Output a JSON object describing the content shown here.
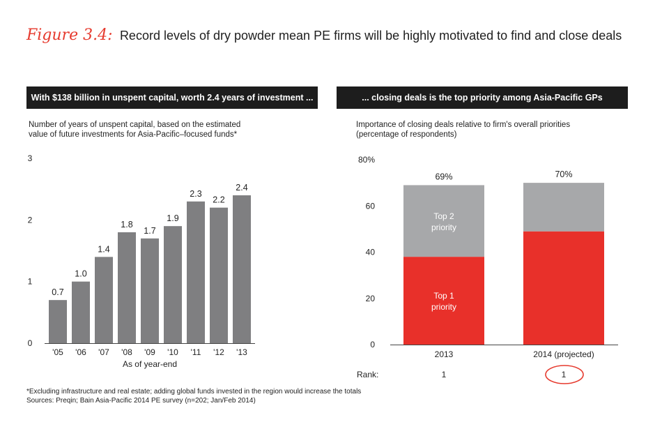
{
  "figure": {
    "label": "Figure 3.4:",
    "title": "Record levels of dry powder mean PE firms will be highly motivated to find and close deals"
  },
  "left_panel": {
    "banner": "With $138 billion in unspent capital, worth 2.4 years of investment ...",
    "subtitle_line1": "Number of years of unspent capital, based on the estimated",
    "subtitle_line2": "value of future investments for Asia-Pacific–focused funds*"
  },
  "right_panel": {
    "banner": "... closing deals is the top priority among Asia-Pacific GPs",
    "subtitle_line1": "Importance of closing deals relative to firm's overall priorities",
    "subtitle_line2": "(percentage of respondents)",
    "rank_label": "Rank:"
  },
  "footnotes": {
    "note": "*Excluding infrastructure and real estate; adding global funds invested in the region would increase the totals",
    "sources": "Sources: Preqin; Bain Asia-Pacific 2014 PE survey (n=202; Jan/Feb 2014)"
  },
  "colors": {
    "bar_gray": "#7f7f81",
    "top1_red": "#e8302a",
    "top2_gray": "#a7a8aa",
    "accent": "#e63a2e"
  },
  "chart_data": [
    {
      "type": "bar",
      "title": "With $138 billion in unspent capital, worth 2.4 years of investment ...",
      "xlabel": "As of year-end",
      "ylabel": "Number of years of unspent capital",
      "categories": [
        "'05",
        "'06",
        "'07",
        "'08",
        "'09",
        "'10",
        "'11",
        "'12",
        "'13"
      ],
      "values": [
        0.7,
        1.0,
        1.4,
        1.8,
        1.7,
        1.9,
        2.3,
        2.2,
        2.4
      ],
      "data_labels": [
        "0.7",
        "1.0",
        "1.4",
        "1.8",
        "1.7",
        "1.9",
        "2.3",
        "2.2",
        "2.4"
      ],
      "ylim": [
        0,
        3
      ],
      "yticks": [
        "0",
        "1",
        "2",
        "3"
      ]
    },
    {
      "type": "bar",
      "stacked": true,
      "title": "... closing deals is the top priority among Asia-Pacific GPs",
      "categories": [
        "2013",
        "2014 (projected)"
      ],
      "series": [
        {
          "name": "Top 1 priority",
          "label_line1": "Top 1",
          "label_line2": "priority",
          "values": [
            38,
            49
          ]
        },
        {
          "name": "Top 2 priority",
          "label_line1": "Top 2",
          "label_line2": "priority",
          "values": [
            31,
            21
          ]
        }
      ],
      "totals": [
        "69%",
        "70%"
      ],
      "ranks": [
        "1",
        "1"
      ],
      "ylim": [
        0,
        80
      ],
      "yticks": [
        "0",
        "20",
        "40",
        "60",
        "80%"
      ]
    }
  ]
}
